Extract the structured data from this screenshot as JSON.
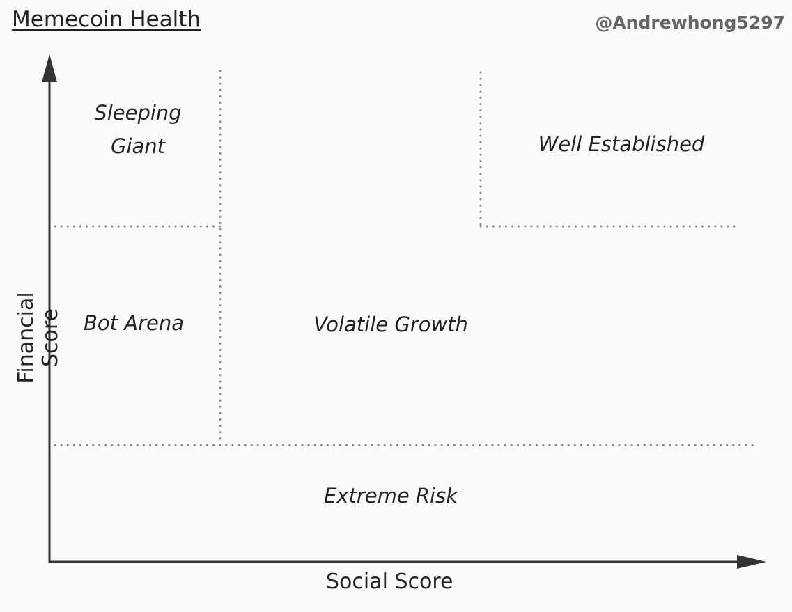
{
  "title": "Memecoin Health",
  "author": "@Andrewhong5297",
  "axes": {
    "x_label": "Social Score",
    "y_label": "Financial Score"
  },
  "zones": {
    "sleeping_giant": "Sleeping\nGiant",
    "well_established": "Well Established",
    "bot_arena": "Bot Arena",
    "volatile_growth": "Volatile Growth",
    "extreme_risk": "Extreme Risk"
  },
  "colors": {
    "axis": "#333333",
    "divider": "#888888",
    "background": "#fafafa"
  }
}
